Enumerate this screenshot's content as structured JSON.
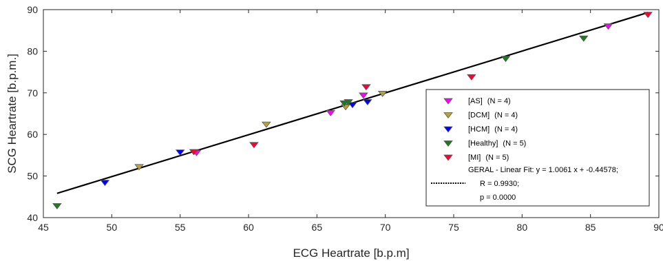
{
  "chart_data": {
    "type": "scatter",
    "xlabel": "ECG Heartrate [b.p.m]",
    "ylabel": "SCG Heartrate [b.p.m.]",
    "xlim": [
      45,
      90
    ],
    "ylim": [
      40,
      90
    ],
    "xticks": [
      "45",
      "50",
      "55",
      "60",
      "65",
      "70",
      "75",
      "80",
      "85",
      "90"
    ],
    "yticks": [
      "40",
      "50",
      "60",
      "70",
      "80",
      "90"
    ],
    "grid": false,
    "legend_position": "lower-right",
    "series": [
      {
        "name": "[AS]",
        "count_label": "(N = 4)",
        "color": "#ff00ff",
        "points": [
          [
            56.2,
            55.7
          ],
          [
            66.0,
            65.3
          ],
          [
            68.4,
            69.5
          ],
          [
            86.3,
            86.1
          ]
        ]
      },
      {
        "name": "[DCM]",
        "count_label": "(N = 4)",
        "color": "#b5a23a",
        "points": [
          [
            52.0,
            52.3
          ],
          [
            61.3,
            62.5
          ],
          [
            67.1,
            66.7
          ],
          [
            69.8,
            69.9
          ]
        ]
      },
      {
        "name": "[HCM]",
        "count_label": "(N = 4)",
        "color": "#0000ff",
        "points": [
          [
            49.5,
            48.5
          ],
          [
            55.0,
            55.8
          ],
          [
            67.6,
            67.2
          ],
          [
            68.7,
            67.9
          ]
        ]
      },
      {
        "name": "[Healthy]",
        "count_label": "(N = 5)",
        "color": "#1f7a1f",
        "points": [
          [
            46.0,
            42.9
          ],
          [
            67.0,
            67.6
          ],
          [
            67.3,
            67.9
          ],
          [
            78.8,
            78.3
          ],
          [
            84.5,
            83.2
          ]
        ]
      },
      {
        "name": "[MI]",
        "count_label": "(N = 5)",
        "color": "#ff0033",
        "points": [
          [
            56.0,
            55.9
          ],
          [
            60.4,
            57.6
          ],
          [
            68.6,
            71.5
          ],
          [
            76.3,
            73.9
          ],
          [
            89.2,
            88.9
          ]
        ]
      }
    ],
    "fit": {
      "line_legend": "GERAL - Linear Fit: y = 1.0061 x + -0.44578;",
      "r_text": "R = 0.9930;",
      "p_text": "p = 0.0000",
      "slope": 1.0061,
      "intercept": -0.44578,
      "x_range": [
        46.0,
        89.2
      ],
      "color": "#000000"
    }
  }
}
